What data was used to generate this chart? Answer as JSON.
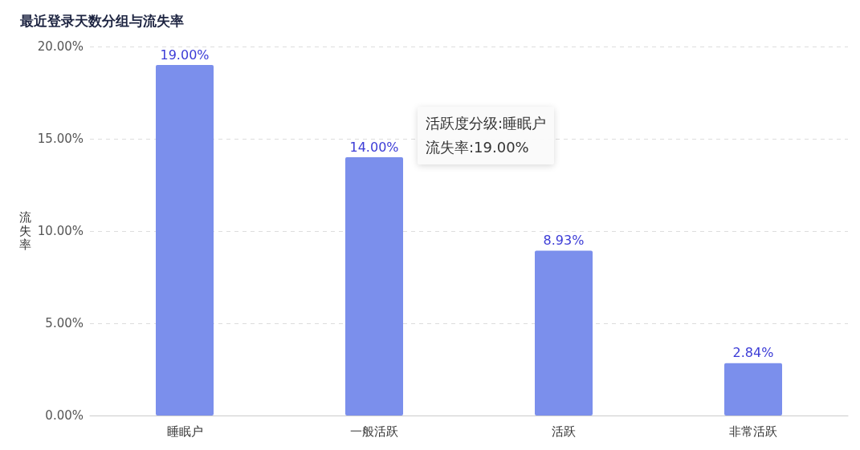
{
  "chart_data": {
    "type": "bar",
    "title": "最近登录天数分组与流失率",
    "ylabel": "流失率",
    "categories": [
      "睡眠户",
      "一般活跃",
      "活跃",
      "非常活跃"
    ],
    "values": [
      19.0,
      14.0,
      8.93,
      2.84
    ],
    "value_labels": [
      "19.00%",
      "14.00%",
      "8.93%",
      "2.84%"
    ],
    "color": "#7b8fec",
    "ylim": [
      0,
      20
    ],
    "yticks": [
      {
        "value": 0,
        "label": "0.00%"
      },
      {
        "value": 5,
        "label": "5.00%"
      },
      {
        "value": 10,
        "label": "10.00%"
      },
      {
        "value": 15,
        "label": "15.00%"
      },
      {
        "value": 20,
        "label": "20.00%"
      }
    ],
    "grid": "y",
    "annotations": [
      "活跃度分级:睡眠户",
      "流失率:19.00%"
    ]
  }
}
